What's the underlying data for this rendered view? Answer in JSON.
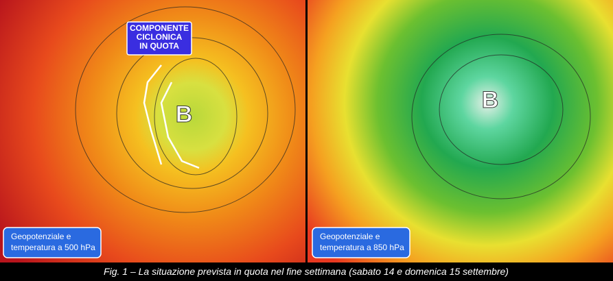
{
  "panels": [
    {
      "center_label": "B",
      "callout": [
        "COMPONENTE",
        "CICLONICA",
        "IN QUOTA"
      ],
      "label": [
        "Geopotenziale e",
        "temperatura a 500 hPa"
      ]
    },
    {
      "center_label": "B",
      "label": [
        "Geopotenziale e",
        "temperatura a 850 hPa"
      ]
    }
  ],
  "caption": "Fig. 1 – La situazione prevista in quota nel fine settimana (sabato 14 e domenica 15 settembre)"
}
